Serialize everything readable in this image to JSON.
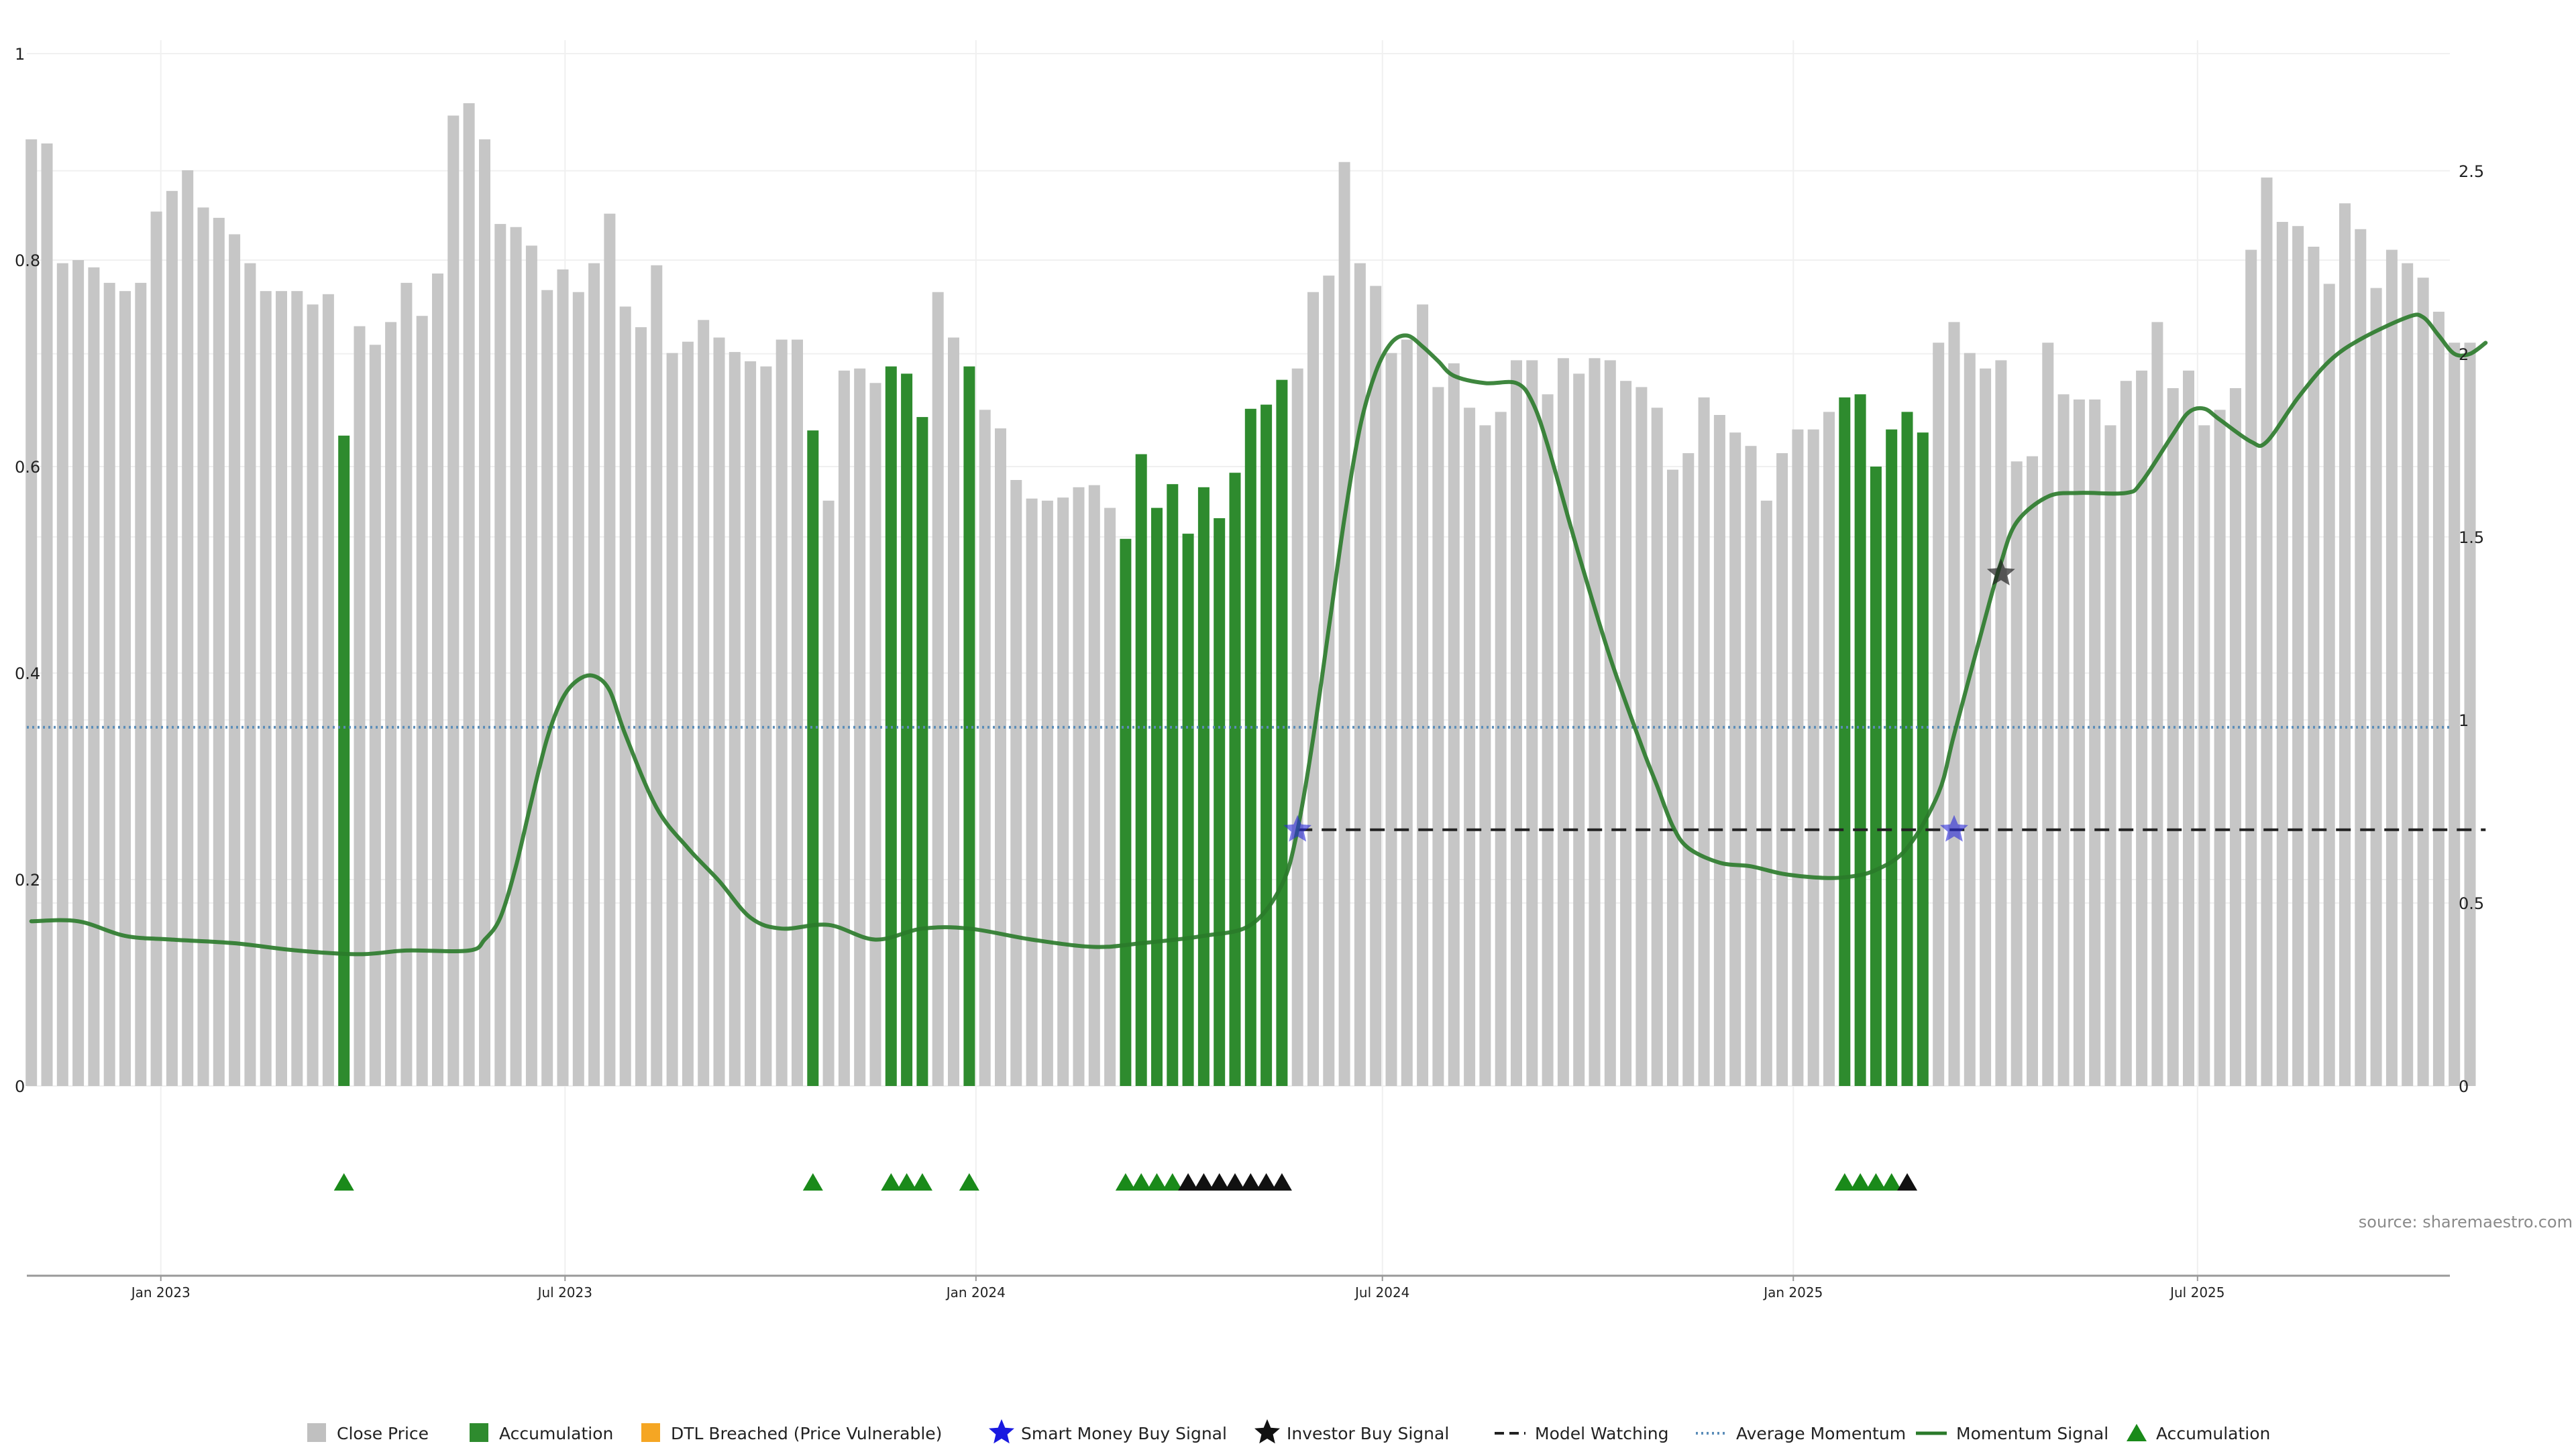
{
  "chart_data": {
    "type": "bar",
    "source": "source: sharemaestro.com",
    "left_axis": {
      "ylim": [
        0,
        1
      ],
      "ticks": [
        0,
        0.2,
        0.4,
        0.6,
        0.8,
        1
      ],
      "tick_labels": [
        "0",
        "0.2",
        "0.4",
        "0.6",
        "0.8",
        "1"
      ]
    },
    "right_axis": {
      "ylim": [
        0,
        2.82
      ],
      "ticks": [
        0,
        0.5,
        1,
        1.5,
        2,
        2.5
      ],
      "tick_labels": [
        "0",
        "0.5",
        "1",
        "1.5",
        "2",
        "2.5"
      ]
    },
    "x_axis": {
      "range": [
        "2022-11-02",
        "2025-10-22"
      ],
      "ticks": [
        {
          "date": "2023-01-01",
          "label": "Jan 2023"
        },
        {
          "date": "2023-07-01",
          "label": "Jul 2023"
        },
        {
          "date": "2024-01-01",
          "label": "Jan 2024"
        },
        {
          "date": "2024-07-01",
          "label": "Jul 2024"
        },
        {
          "date": "2025-01-01",
          "label": "Jan 2025"
        },
        {
          "date": "2025-07-01",
          "label": "Jul 2025"
        }
      ]
    },
    "close_price": {
      "name": "Close Price",
      "color": "#c6c6c6",
      "accumulation_color": "#2e8b2e",
      "first_week": "2022-11-04",
      "values": [
        0.917,
        0.913,
        0.797,
        0.8,
        0.793,
        0.778,
        0.77,
        0.778,
        0.847,
        0.867,
        0.887,
        0.851,
        0.841,
        0.825,
        0.797,
        0.77,
        0.77,
        0.77,
        0.757,
        0.767,
        0.63,
        0.736,
        0.718,
        0.74,
        0.778,
        0.746,
        0.787,
        0.94,
        0.952,
        0.917,
        0.835,
        0.832,
        0.814,
        0.771,
        0.791,
        0.769,
        0.797,
        0.845,
        0.755,
        0.735,
        0.795,
        0.71,
        0.721,
        0.742,
        0.725,
        0.711,
        0.702,
        0.697,
        0.723,
        0.723,
        0.635,
        0.567,
        0.693,
        0.695,
        0.681,
        0.697,
        0.69,
        0.648,
        0.769,
        0.725,
        0.697,
        0.655,
        0.637,
        0.587,
        0.569,
        0.567,
        0.57,
        0.58,
        0.582,
        0.56,
        0.53,
        0.612,
        0.56,
        0.583,
        0.535,
        0.58,
        0.55,
        0.594,
        0.656,
        0.66,
        0.684,
        0.695,
        0.769,
        0.785,
        0.895,
        0.797,
        0.775,
        0.71,
        0.723,
        0.757,
        0.677,
        0.7,
        0.657,
        0.64,
        0.653,
        0.703,
        0.703,
        0.67,
        0.705,
        0.69,
        0.705,
        0.703,
        0.683,
        0.677,
        0.657,
        0.597,
        0.613,
        0.667,
        0.65,
        0.633,
        0.62,
        0.567,
        0.613,
        0.636,
        0.636,
        0.653,
        0.667,
        0.67,
        0.6,
        0.636,
        0.653,
        0.633,
        0.72,
        0.74,
        0.71,
        0.695,
        0.703,
        0.605,
        0.61,
        0.72,
        0.67,
        0.665,
        0.665,
        0.64,
        0.683,
        0.693,
        0.74,
        0.676,
        0.693,
        0.64,
        0.655,
        0.676,
        0.81,
        0.88,
        0.837,
        0.833,
        0.813,
        0.777,
        0.855,
        0.83,
        0.773,
        0.81,
        0.797,
        0.783,
        0.75,
        0.72,
        0.72
      ],
      "accumulation_weeks": [
        20,
        50,
        55,
        56,
        57,
        60,
        70,
        71,
        72,
        73,
        74,
        75,
        76,
        77,
        78,
        79,
        80,
        116,
        117,
        118,
        119,
        120,
        121
      ]
    },
    "momentum_signal": {
      "name": "Momentum Signal",
      "color": "#2a7a2a",
      "points": [
        [
          "2022-11-04",
          0.45
        ],
        [
          "2022-11-25",
          0.45
        ],
        [
          "2022-12-16",
          0.41
        ],
        [
          "2023-01-06",
          0.4
        ],
        [
          "2023-02-03",
          0.39
        ],
        [
          "2023-03-03",
          0.37
        ],
        [
          "2023-03-31",
          0.36
        ],
        [
          "2023-04-21",
          0.37
        ],
        [
          "2023-05-19",
          0.37
        ],
        [
          "2023-05-26",
          0.4
        ],
        [
          "2023-06-02",
          0.46
        ],
        [
          "2023-06-09",
          0.6
        ],
        [
          "2023-06-16",
          0.78
        ],
        [
          "2023-06-23",
          0.95
        ],
        [
          "2023-06-30",
          1.06
        ],
        [
          "2023-07-07",
          1.11
        ],
        [
          "2023-07-14",
          1.12
        ],
        [
          "2023-07-21",
          1.08
        ],
        [
          "2023-07-28",
          0.96
        ],
        [
          "2023-08-11",
          0.76
        ],
        [
          "2023-08-25",
          0.65
        ],
        [
          "2023-09-08",
          0.56
        ],
        [
          "2023-09-22",
          0.46
        ],
        [
          "2023-10-06",
          0.43
        ],
        [
          "2023-10-27",
          0.44
        ],
        [
          "2023-11-17",
          0.4
        ],
        [
          "2023-12-08",
          0.43
        ],
        [
          "2023-12-29",
          0.43
        ],
        [
          "2024-01-26",
          0.4
        ],
        [
          "2024-02-23",
          0.38
        ],
        [
          "2024-03-15",
          0.39
        ],
        [
          "2024-04-12",
          0.41
        ],
        [
          "2024-05-03",
          0.44
        ],
        [
          "2024-05-17",
          0.55
        ],
        [
          "2024-05-24",
          0.7
        ],
        [
          "2024-05-31",
          0.95
        ],
        [
          "2024-06-07",
          1.25
        ],
        [
          "2024-06-14",
          1.55
        ],
        [
          "2024-06-21",
          1.8
        ],
        [
          "2024-06-28",
          1.95
        ],
        [
          "2024-07-05",
          2.03
        ],
        [
          "2024-07-12",
          2.05
        ],
        [
          "2024-07-19",
          2.02
        ],
        [
          "2024-07-26",
          1.98
        ],
        [
          "2024-08-02",
          1.94
        ],
        [
          "2024-08-16",
          1.92
        ],
        [
          "2024-08-30",
          1.92
        ],
        [
          "2024-09-06",
          1.87
        ],
        [
          "2024-09-13",
          1.75
        ],
        [
          "2024-09-27",
          1.45
        ],
        [
          "2024-10-11",
          1.17
        ],
        [
          "2024-10-25",
          0.93
        ],
        [
          "2024-11-01",
          0.82
        ],
        [
          "2024-11-08",
          0.71
        ],
        [
          "2024-11-15",
          0.65
        ],
        [
          "2024-11-29",
          0.61
        ],
        [
          "2024-12-13",
          0.6
        ],
        [
          "2024-12-27",
          0.58
        ],
        [
          "2025-01-10",
          0.57
        ],
        [
          "2025-01-24",
          0.57
        ],
        [
          "2025-02-07",
          0.59
        ],
        [
          "2025-02-21",
          0.65
        ],
        [
          "2025-03-07",
          0.8
        ],
        [
          "2025-03-14",
          0.96
        ],
        [
          "2025-03-28",
          1.28
        ],
        [
          "2025-04-04",
          1.43
        ],
        [
          "2025-04-11",
          1.54
        ],
        [
          "2025-04-25",
          1.61
        ],
        [
          "2025-05-09",
          1.62
        ],
        [
          "2025-05-30",
          1.62
        ],
        [
          "2025-06-06",
          1.65
        ],
        [
          "2025-06-20",
          1.78
        ],
        [
          "2025-06-27",
          1.84
        ],
        [
          "2025-07-04",
          1.85
        ],
        [
          "2025-07-11",
          1.82
        ],
        [
          "2025-07-25",
          1.76
        ],
        [
          "2025-08-01",
          1.76
        ],
        [
          "2025-08-15",
          1.88
        ],
        [
          "2025-08-29",
          1.98
        ],
        [
          "2025-09-12",
          2.04
        ],
        [
          "2025-10-03",
          2.1
        ],
        [
          "2025-10-10",
          2.1
        ],
        [
          "2025-10-17",
          2.05
        ],
        [
          "2025-10-24",
          2.0
        ],
        [
          "2025-10-31",
          2.0
        ],
        [
          "2025-11-07",
          2.03
        ]
      ]
    },
    "average_momentum": {
      "name": "Average Momentum",
      "color": "#5b8db8",
      "value": 0.98
    },
    "model_watching": {
      "name": "Model Watching",
      "color": "#222222",
      "value": 0.7,
      "from": "2024-05-24",
      "to": "2025-11-07"
    },
    "smart_money_buy_signal": {
      "name": "Smart Money Buy Signal",
      "color": "#2828d8",
      "points": [
        [
          "2024-05-24",
          0.7
        ],
        [
          "2025-03-14",
          0.7
        ]
      ]
    },
    "investor_buy_signal": {
      "name": "Investor Buy Signal",
      "color": "#222222",
      "points": [
        [
          "2025-04-04",
          1.4
        ]
      ]
    },
    "markers": {
      "name": "Accumulation",
      "green": "#1a8a1a",
      "black": "#111111",
      "green_weeks": [
        20,
        50,
        55,
        56,
        57,
        60,
        70,
        71,
        72,
        73,
        116,
        117,
        118,
        119
      ],
      "black_weeks": [
        74,
        75,
        76,
        77,
        78,
        79,
        80,
        120
      ]
    },
    "legend": [
      {
        "label": "Close Price",
        "symbol": "square",
        "color": "#c0c0c0"
      },
      {
        "label": "Accumulation",
        "symbol": "square",
        "color": "#2e8b2e"
      },
      {
        "label": "DTL Breached (Price Vulnerable)",
        "symbol": "square",
        "color": "#f5a623"
      },
      {
        "label": "Smart Money Buy Signal",
        "symbol": "star",
        "color": "#1a1ae0"
      },
      {
        "label": "Investor Buy Signal",
        "symbol": "star",
        "color": "#111111"
      },
      {
        "label": "Model Watching",
        "symbol": "dash",
        "color": "#222222"
      },
      {
        "label": "Average Momentum",
        "symbol": "dot",
        "color": "#5b8db8"
      },
      {
        "label": "Momentum Signal",
        "symbol": "line",
        "color": "#2a7a2a"
      },
      {
        "label": "Accumulation",
        "symbol": "triangle",
        "color": "#1a8a1a"
      }
    ]
  }
}
